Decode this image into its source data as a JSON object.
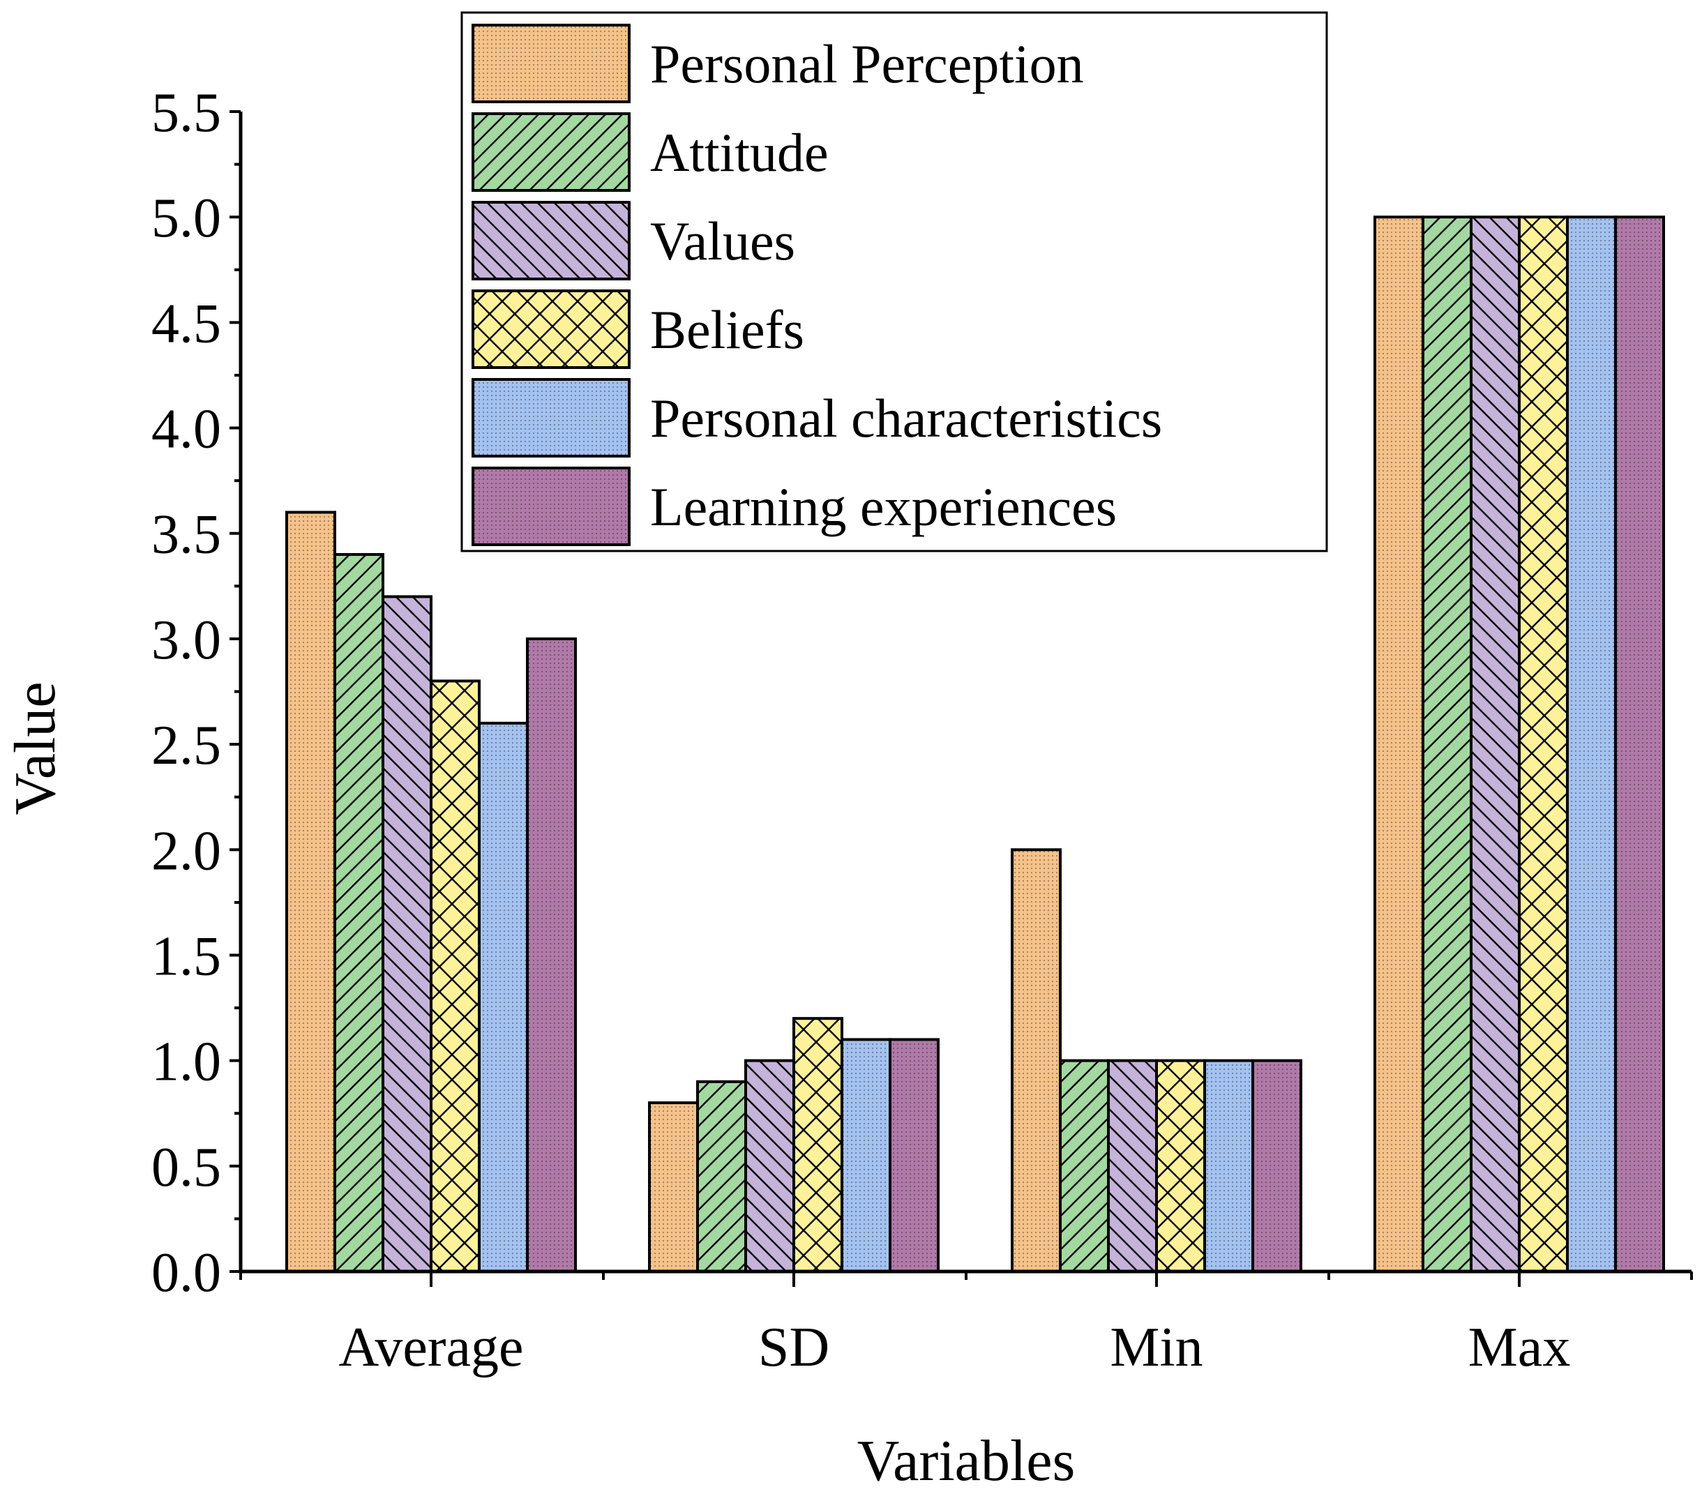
{
  "chart_data": {
    "type": "bar",
    "title": "",
    "xlabel": "Variables",
    "ylabel": "Value",
    "categories": [
      "Average",
      "SD",
      "Min",
      "Max"
    ],
    "ylim": [
      0,
      5.5
    ],
    "yticks": [
      "0.0",
      "0.5",
      "1.0",
      "1.5",
      "2.0",
      "2.5",
      "3.0",
      "3.5",
      "4.0",
      "4.5",
      "5.0",
      "5.5"
    ],
    "legend_position": "top-center",
    "series": [
      {
        "name": "Personal Perception",
        "values": [
          3.6,
          0.8,
          2.0,
          5.0
        ],
        "color": "#f5c28a",
        "pattern": "dots"
      },
      {
        "name": "Attitude",
        "values": [
          3.4,
          0.9,
          1.0,
          5.0
        ],
        "color": "#a3d9a0",
        "pattern": "forward-hatch"
      },
      {
        "name": "Values",
        "values": [
          3.2,
          1.0,
          1.0,
          5.0
        ],
        "color": "#c5b3da",
        "pattern": "back-hatch"
      },
      {
        "name": "Beliefs",
        "values": [
          2.8,
          1.2,
          1.0,
          5.0
        ],
        "color": "#fdf29a",
        "pattern": "cross-hatch"
      },
      {
        "name": "Personal characteristics",
        "values": [
          2.6,
          1.1,
          1.0,
          5.0
        ],
        "color": "#a4c2f0",
        "pattern": "dots"
      },
      {
        "name": "Learning experiences",
        "values": [
          3.0,
          1.1,
          1.0,
          5.0
        ],
        "color": "#b07aa8",
        "pattern": "dots"
      }
    ]
  }
}
